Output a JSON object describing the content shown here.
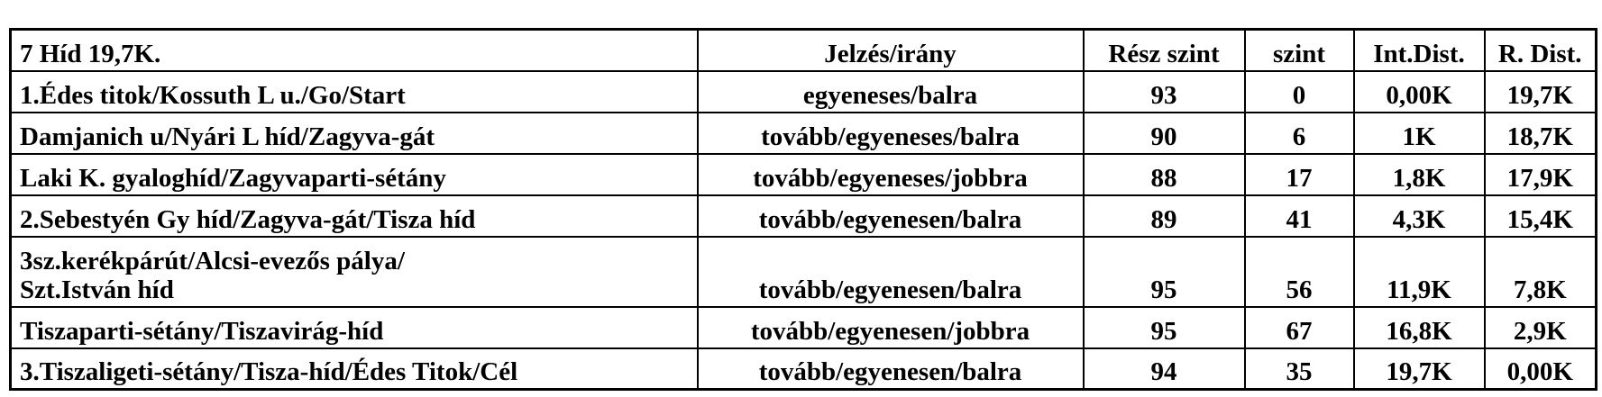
{
  "table": {
    "header": [
      "7 Híd  19,7K.",
      "Jelzés/irány",
      "Rész szint",
      "szint",
      "Int.Dist.",
      "R. Dist."
    ],
    "rows": [
      [
        "1.Édes titok/Kossuth L u./Go/Start",
        "egyeneses/balra",
        "93",
        "0",
        "0,00K",
        "19,7K"
      ],
      [
        "Damjanich u/Nyári L híd/Zagyva-gát",
        "tovább/egyeneses/balra",
        "90",
        "6",
        "1K",
        "18,7K"
      ],
      [
        "Laki K. gyaloghíd/Zagyvaparti-sétány",
        "tovább/egyeneses/jobbra",
        "88",
        "17",
        "1,8K",
        "17,9K"
      ],
      [
        "2.Sebestyén Gy híd/Zagyva-gát/Tisza híd",
        "tovább/egyenesen/balra",
        "89",
        "41",
        "4,3K",
        "15,4K"
      ],
      [
        "3sz.kerékpárút/Alcsi-evezős pálya/\nSzt.István híd",
        "tovább/egyenesen/balra",
        "95",
        "56",
        "11,9K",
        "7,8K"
      ],
      [
        "Tiszaparti-sétány/Tiszavirág-híd",
        "tovább/egyenesen/jobbra",
        "95",
        "67",
        "16,8K",
        "2,9K"
      ],
      [
        "3.Tiszaligeti-sétány/Tisza-híd/Édes Titok/Cél",
        "tovább/egyenesen/balra",
        "94",
        "35",
        "19,7K",
        "0,00K"
      ]
    ]
  }
}
